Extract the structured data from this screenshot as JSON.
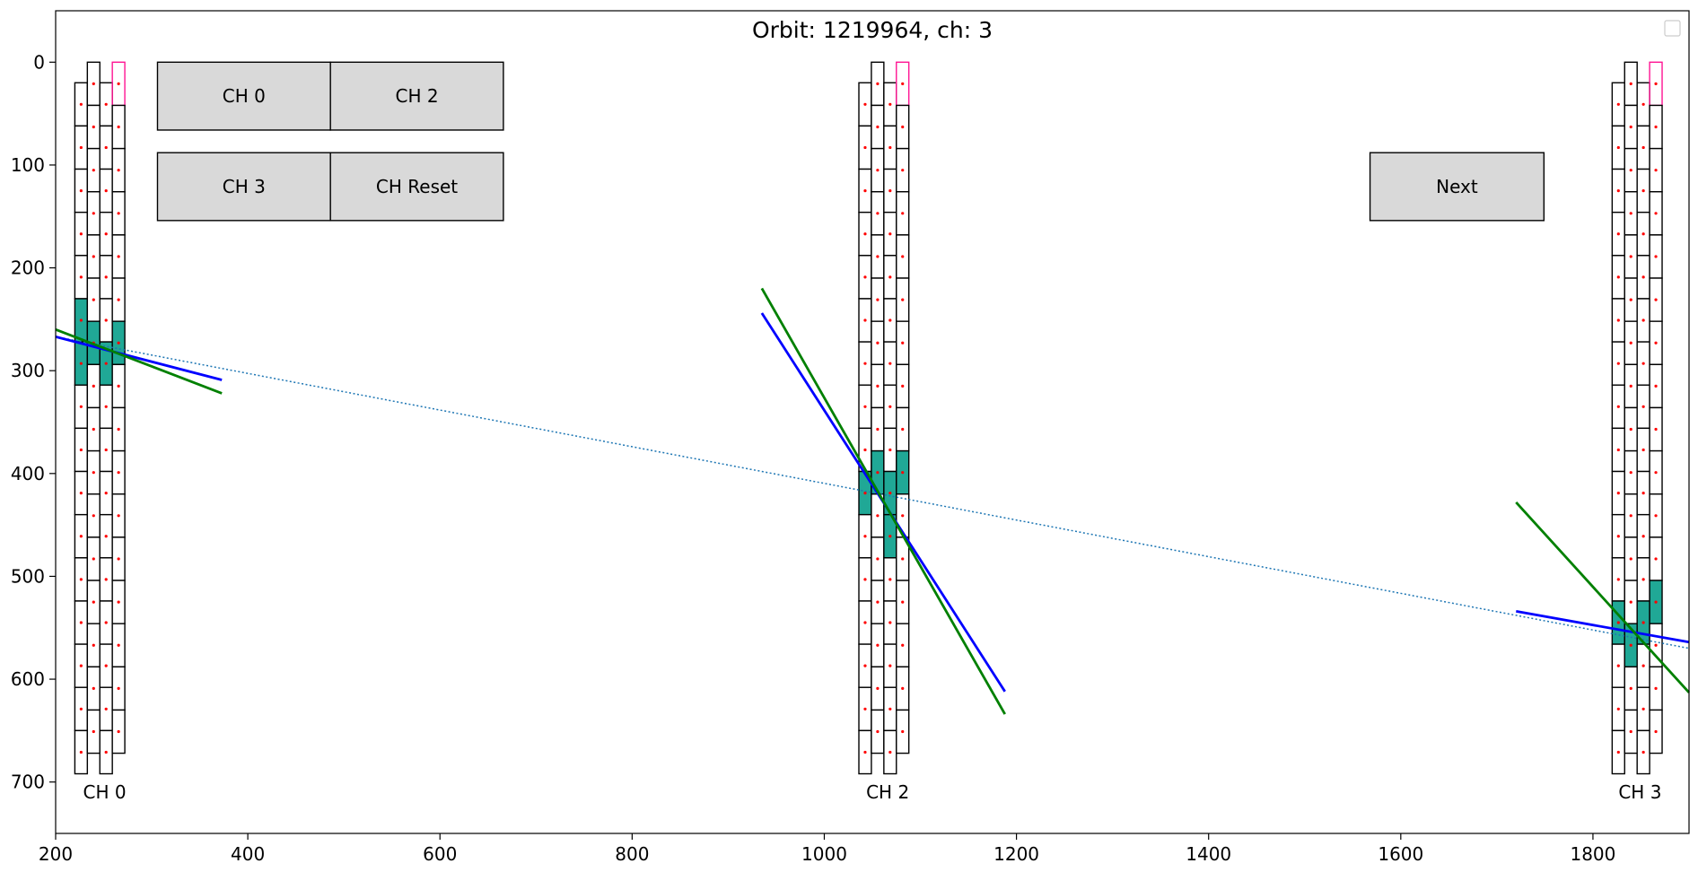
{
  "chart_data": {
    "type": "scatter",
    "title": "Orbit: 1219964, ch: 3",
    "xlim": [
      200,
      1900
    ],
    "ylim": [
      750,
      -50
    ],
    "x_ticks": [
      200,
      400,
      600,
      800,
      1000,
      1200,
      1400,
      1600,
      1800
    ],
    "y_ticks": [
      0,
      100,
      200,
      300,
      400,
      500,
      600,
      700
    ],
    "grid": false,
    "legend": {
      "position": "top-right",
      "entries": []
    },
    "layer_width": 13,
    "cell_height": 42,
    "chambers": [
      {
        "label": "CH 0",
        "label_x": 251,
        "label_y": 710,
        "layers": [
          {
            "x0": 220,
            "y_start": 20,
            "n_cells": 16,
            "hit_rows": [
              5,
              6
            ]
          },
          {
            "x0": 233,
            "y_start": 0,
            "n_cells": 16,
            "hit_rows": [
              6
            ]
          },
          {
            "x0": 246,
            "y_start": 20,
            "n_cells": 16,
            "hit_rows": [
              6
            ]
          },
          {
            "x0": 259,
            "y_start": 0,
            "n_cells": 15,
            "hit_rows": [
              6
            ],
            "pink_row": 0,
            "row_offset": 1
          }
        ]
      },
      {
        "label": "CH 2",
        "label_x": 1066,
        "label_y": 710,
        "layers": [
          {
            "x0": 1036,
            "y_start": 20,
            "n_cells": 16,
            "hit_rows": [
              9
            ]
          },
          {
            "x0": 1049,
            "y_start": 0,
            "n_cells": 16,
            "hit_rows": [
              9
            ]
          },
          {
            "x0": 1062,
            "y_start": 20,
            "n_cells": 16,
            "hit_rows": [
              9,
              10
            ]
          },
          {
            "x0": 1075,
            "y_start": 0,
            "n_cells": 15,
            "hit_rows": [
              9
            ],
            "pink_row": 0,
            "row_offset": 1
          }
        ]
      },
      {
        "label": "CH 3",
        "label_x": 1849,
        "label_y": 710,
        "layers": [
          {
            "x0": 1820,
            "y_start": 20,
            "n_cells": 16,
            "hit_rows": [
              12
            ]
          },
          {
            "x0": 1833,
            "y_start": 0,
            "n_cells": 16,
            "hit_rows": [
              13
            ]
          },
          {
            "x0": 1846,
            "y_start": 20,
            "n_cells": 16,
            "hit_rows": [
              12
            ]
          },
          {
            "x0": 1859,
            "y_start": 0,
            "n_cells": 15,
            "hit_rows": [
              12
            ],
            "pink_row": 0,
            "row_offset": 1
          }
        ]
      }
    ],
    "series": [
      {
        "style": "dotted",
        "color": "#1f77b4",
        "x": [
          200,
          1900
        ],
        "y": [
          267,
          570
        ]
      },
      {
        "style": "solid",
        "color": "#0000ff",
        "x": [
          200,
          373
        ],
        "y": [
          267,
          309
        ]
      },
      {
        "style": "solid",
        "color": "#008000",
        "x": [
          200,
          373
        ],
        "y": [
          260,
          322
        ]
      },
      {
        "style": "solid",
        "color": "#0000ff",
        "x": [
          935,
          1188
        ],
        "y": [
          244,
          612
        ]
      },
      {
        "style": "solid",
        "color": "#008000",
        "x": [
          935,
          1188
        ],
        "y": [
          220,
          634
        ]
      },
      {
        "style": "solid",
        "color": "#0000ff",
        "x": [
          1720,
          1900
        ],
        "y": [
          534,
          564
        ]
      },
      {
        "style": "solid",
        "color": "#008000",
        "x": [
          1720,
          1900
        ],
        "y": [
          428,
          613
        ]
      }
    ]
  },
  "buttons": [
    {
      "id": "ch0",
      "label": "CH 0",
      "x": 306,
      "y": 0,
      "w": 180,
      "h": 66
    },
    {
      "id": "ch2",
      "label": "CH 2",
      "x": 486,
      "y": 0,
      "w": 180,
      "h": 66
    },
    {
      "id": "ch3",
      "label": "CH 3",
      "x": 306,
      "y": 88,
      "w": 180,
      "h": 66
    },
    {
      "id": "chreset",
      "label": "CH Reset",
      "x": 486,
      "y": 88,
      "w": 180,
      "h": 66
    },
    {
      "id": "next",
      "label": "Next",
      "x": 1568,
      "y": 88,
      "w": 181,
      "h": 66
    }
  ],
  "colors": {
    "hit_fill": "#20a896",
    "pink": "#ff1493",
    "dot": "#ff0000",
    "button_fill": "#d9d9d9"
  }
}
